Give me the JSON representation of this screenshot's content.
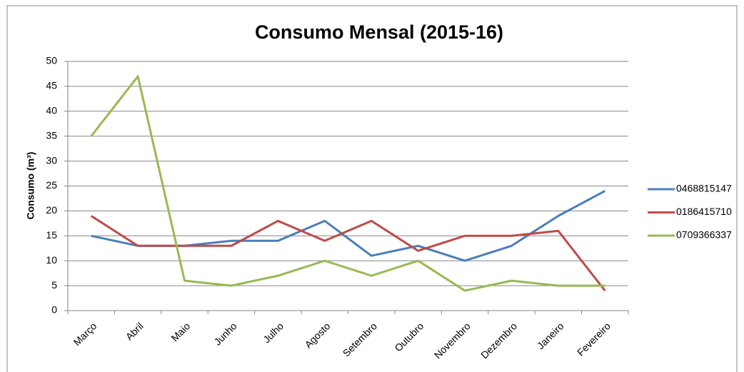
{
  "chart_data": {
    "type": "line",
    "title": "Consumo Mensal (2015-16)",
    "y_label": "Consumo (m³)",
    "categories": [
      "Março",
      "Abril",
      "Maio",
      "Junho",
      "Julho",
      "Agosto",
      "Setembro",
      "Outubro",
      "Novembro",
      "Dezembro",
      "Janeiro",
      "Fevereiro"
    ],
    "series": [
      {
        "name": "0468815147",
        "color": "#4a7ebb",
        "values": [
          15,
          13,
          13,
          14,
          14,
          18,
          11,
          13,
          10,
          13,
          19,
          24
        ]
      },
      {
        "name": "0186415710",
        "color": "#be4b48",
        "values": [
          19,
          13,
          13,
          13,
          18,
          14,
          18,
          12,
          15,
          15,
          16,
          4
        ]
      },
      {
        "name": "0709366337",
        "color": "#98b954",
        "values": [
          35,
          47,
          6,
          5,
          7,
          10,
          7,
          10,
          4,
          6,
          5,
          5
        ]
      }
    ],
    "ylim": [
      0,
      50
    ],
    "yticks": [
      0,
      5,
      10,
      15,
      20,
      25,
      30,
      35,
      40,
      45,
      50
    ],
    "grid": true,
    "legend": "right"
  }
}
